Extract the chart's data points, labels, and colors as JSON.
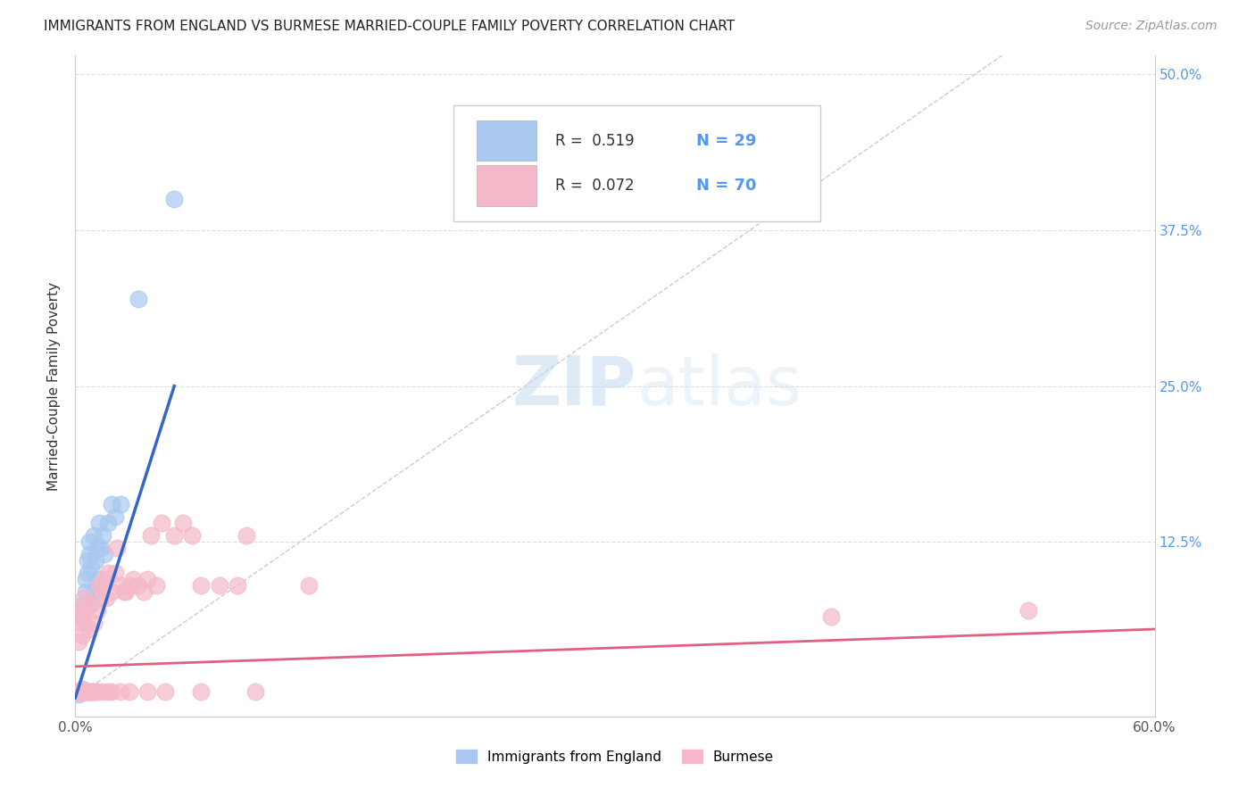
{
  "title": "IMMIGRANTS FROM ENGLAND VS BURMESE MARRIED-COUPLE FAMILY POVERTY CORRELATION CHART",
  "source": "Source: ZipAtlas.com",
  "ylabel": "Married-Couple Family Poverty",
  "xlim": [
    0.0,
    0.6
  ],
  "ylim": [
    -0.015,
    0.515
  ],
  "color_england": "#a8c8f0",
  "color_burmese": "#f5b8c8",
  "color_england_line": "#3366cc",
  "color_burmese_line": "#e06080",
  "color_diagonal": "#cccccc",
  "color_grid": "#dddddd",
  "color_title": "#222222",
  "color_axis_right": "#5599ee",
  "watermark_zip": "ZIP",
  "watermark_atlas": "atlas",
  "england_x": [
    0.002,
    0.003,
    0.004,
    0.004,
    0.005,
    0.005,
    0.006,
    0.006,
    0.007,
    0.007,
    0.008,
    0.008,
    0.009,
    0.009,
    0.01,
    0.01,
    0.011,
    0.012,
    0.012,
    0.013,
    0.014,
    0.015,
    0.016,
    0.018,
    0.02,
    0.022,
    0.025,
    0.035,
    0.055
  ],
  "england_y": [
    0.003,
    0.005,
    0.007,
    0.065,
    0.075,
    0.005,
    0.085,
    0.095,
    0.1,
    0.11,
    0.115,
    0.125,
    0.105,
    0.075,
    0.13,
    0.085,
    0.11,
    0.12,
    0.095,
    0.14,
    0.12,
    0.13,
    0.115,
    0.14,
    0.155,
    0.145,
    0.155,
    0.32,
    0.4
  ],
  "burmese_x": [
    0.001,
    0.002,
    0.002,
    0.003,
    0.003,
    0.003,
    0.004,
    0.004,
    0.004,
    0.005,
    0.005,
    0.005,
    0.006,
    0.006,
    0.007,
    0.007,
    0.008,
    0.008,
    0.009,
    0.01,
    0.01,
    0.011,
    0.012,
    0.013,
    0.014,
    0.015,
    0.016,
    0.017,
    0.018,
    0.02,
    0.022,
    0.023,
    0.025,
    0.027,
    0.028,
    0.03,
    0.032,
    0.035,
    0.038,
    0.04,
    0.042,
    0.045,
    0.048,
    0.055,
    0.06,
    0.065,
    0.07,
    0.08,
    0.09,
    0.095,
    0.002,
    0.003,
    0.004,
    0.005,
    0.006,
    0.008,
    0.01,
    0.012,
    0.015,
    0.018,
    0.02,
    0.025,
    0.03,
    0.04,
    0.05,
    0.07,
    0.1,
    0.13,
    0.42,
    0.53
  ],
  "burmese_y": [
    0.005,
    0.005,
    0.045,
    0.005,
    0.06,
    0.07,
    0.005,
    0.05,
    0.07,
    0.005,
    0.06,
    0.08,
    0.005,
    0.07,
    0.005,
    0.075,
    0.005,
    0.055,
    0.005,
    0.005,
    0.06,
    0.005,
    0.07,
    0.09,
    0.08,
    0.09,
    0.095,
    0.08,
    0.1,
    0.085,
    0.1,
    0.12,
    0.09,
    0.085,
    0.085,
    0.09,
    0.095,
    0.09,
    0.085,
    0.095,
    0.13,
    0.09,
    0.14,
    0.13,
    0.14,
    0.13,
    0.09,
    0.09,
    0.09,
    0.13,
    0.005,
    0.005,
    0.005,
    0.005,
    0.005,
    0.005,
    0.005,
    0.005,
    0.005,
    0.005,
    0.005,
    0.005,
    0.005,
    0.005,
    0.005,
    0.005,
    0.005,
    0.09,
    0.065,
    0.07
  ],
  "eng_line_x0": 0.0,
  "eng_line_y0": 0.0,
  "eng_line_x1": 0.055,
  "eng_line_y1": 0.25,
  "bur_line_x0": 0.0,
  "bur_line_y0": 0.025,
  "bur_line_x1": 0.6,
  "bur_line_y1": 0.055
}
